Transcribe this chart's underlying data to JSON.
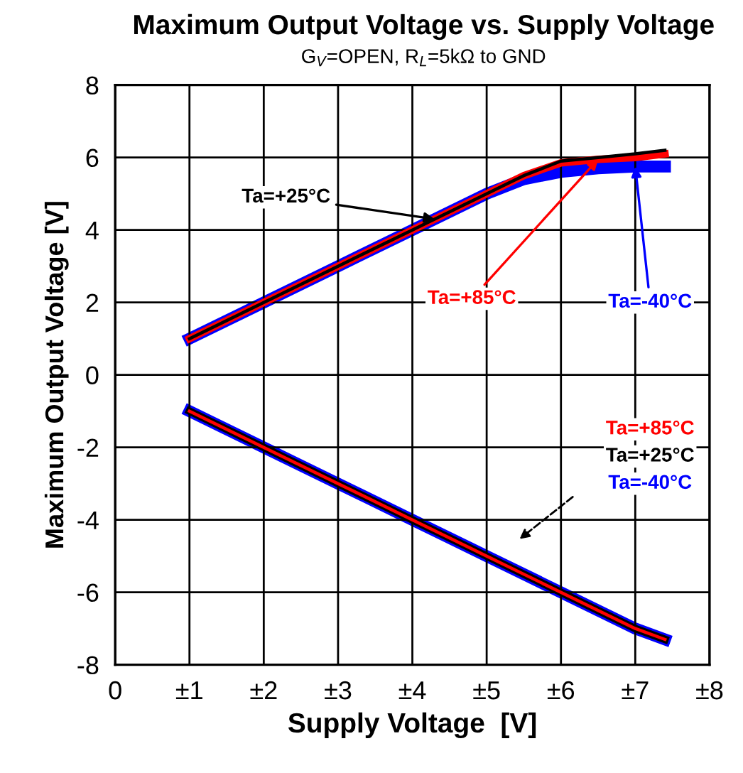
{
  "chart_data": {
    "type": "line",
    "title": "Maximum Output Voltage vs. Supply Voltage",
    "subtitle": "G$_{V}$=OPEN, R$_{L}$=5kΩ to GND",
    "xlabel": "Supply Voltage  [V]",
    "ylabel": "Maximum Output Voltage [V]",
    "series": [
      {
        "color": "#000000",
        "x": [
          1,
          2,
          3,
          4,
          5,
          5.5,
          6,
          6.5,
          7,
          7.4
        ],
        "values": [
          1,
          2,
          3,
          4,
          5,
          5.5,
          5.9,
          6.0,
          6.1,
          6.2
        ]
      },
      {
        "color": "#ff0000",
        "x": [
          1,
          2,
          3,
          4,
          5,
          5.5,
          6,
          6.5,
          7,
          7.4
        ],
        "values": [
          1,
          2,
          3,
          4,
          5,
          5.5,
          5.85,
          5.95,
          6.0,
          6.1
        ]
      },
      {
        "color": "#0000ff",
        "x": [
          1,
          2,
          3,
          4,
          5,
          5.5,
          6,
          6.5,
          7,
          7.4
        ],
        "values": [
          1,
          2,
          3,
          4,
          5,
          5.4,
          5.6,
          5.7,
          5.75,
          5.75
        ]
      },
      {
        "color": "#ff0000",
        "x": [
          1,
          2,
          3,
          4,
          5,
          6,
          7,
          7.4
        ],
        "values": [
          -1,
          -2,
          -3,
          -4,
          -5,
          -6,
          -7,
          -7.3
        ]
      },
      {
        "color": "#000000",
        "x": [
          1,
          2,
          3,
          4,
          5,
          6,
          7,
          7.4
        ],
        "values": [
          -1,
          -2,
          -3,
          -4,
          -5,
          -6,
          -7,
          -7.3
        ]
      },
      {
        "color": "#0000ff",
        "x": [
          1,
          2,
          3,
          4,
          5,
          6,
          7,
          7.4
        ],
        "values": [
          -1,
          -2,
          -3,
          -4,
          -5,
          -6,
          -7,
          -7.3
        ]
      }
    ],
    "annotations": [
      {
        "text": "Ta=+25°C",
        "x": 4.3,
        "y": 4.3
      },
      {
        "text": "Ta=+85°C",
        "x": 6.5,
        "y": 5.95
      },
      {
        "text": "Ta=-40°C",
        "x": 7,
        "y": 5.75
      },
      "Ta=+85°C",
      "Ta=+25°C",
      "Ta=-40°C"
    ],
    "xlim": [
      0,
      8
    ],
    "ylim": [
      -8,
      8
    ],
    "xticks": [
      0,
      {
        "value": 1,
        "label": "±1"
      },
      {
        "value": 2,
        "label": "±2"
      },
      {
        "value": 3,
        "label": "±3"
      },
      {
        "value": 4,
        "label": "±4"
      },
      {
        "value": 5,
        "label": "±5"
      },
      {
        "value": 6,
        "label": "±6"
      },
      {
        "value": 7,
        "label": "±7"
      },
      {
        "value": 8,
        "label": "±8"
      }
    ],
    "yticks": [
      -8,
      -6,
      -4,
      -2,
      0,
      2,
      4,
      6,
      8
    ],
    "grid": true,
    "legend": false,
    "line_style": "solid",
    "marker": "none"
  }
}
